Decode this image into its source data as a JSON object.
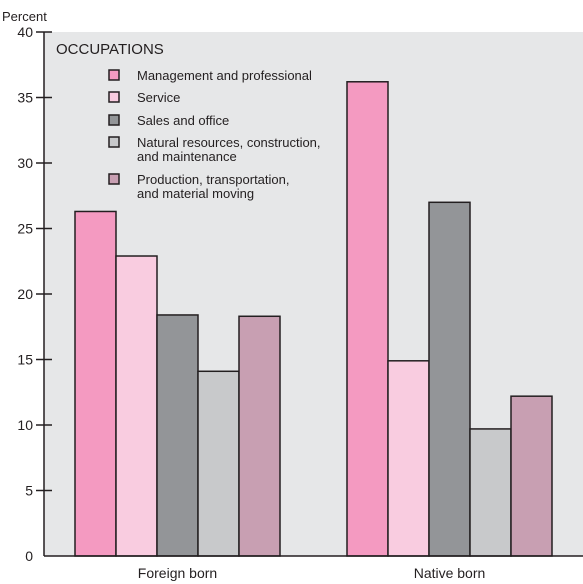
{
  "chart_data": {
    "type": "bar",
    "ylabel": "Percent",
    "ylim": [
      0,
      40
    ],
    "yticks": [
      0,
      5,
      10,
      15,
      20,
      25,
      30,
      35,
      40
    ],
    "categories": [
      "Foreign born",
      "Native born"
    ],
    "legend_title": "OCCUPATIONS",
    "legend_placement": "top-left",
    "grid": false,
    "series": [
      {
        "name": "Management and professional",
        "color": "#f49ac1",
        "values": [
          26.3,
          36.2
        ]
      },
      {
        "name": "Service",
        "color": "#f9cce0",
        "values": [
          22.9,
          14.9
        ]
      },
      {
        "name": "Sales and office",
        "color": "#939598",
        "values": [
          18.4,
          27.0
        ]
      },
      {
        "name": "Natural resources, construction, and maintenance",
        "label_lines": [
          "Natural resources, construction,",
          "and maintenance"
        ],
        "color": "#c8c9cb",
        "values": [
          14.1,
          9.7
        ]
      },
      {
        "name": "Production, transportation, and material moving",
        "label_lines": [
          "Production, transportation,",
          "and material moving"
        ],
        "color": "#c89fb2",
        "values": [
          18.3,
          12.2
        ]
      }
    ]
  },
  "colors": {
    "plot_background": "#e6e7e8",
    "axis": "#231f20"
  }
}
